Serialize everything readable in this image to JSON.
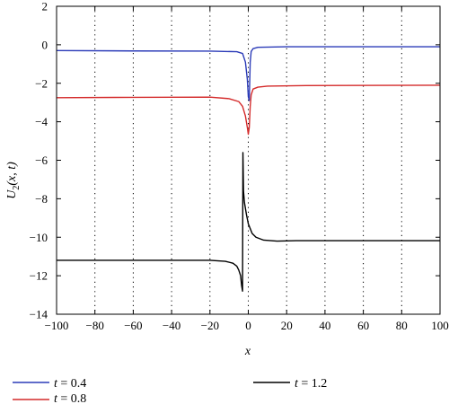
{
  "chart_data": {
    "type": "line",
    "xlabel": "x",
    "ylabel_main": "U",
    "ylabel_sub": "2",
    "ylabel_tail": "(x, t)",
    "xlim": [
      -100,
      100
    ],
    "ylim": [
      -14,
      2
    ],
    "x_ticks": [
      "−100",
      "−80",
      "−60",
      "−40",
      "−20",
      "0",
      "20",
      "40",
      "60",
      "80",
      "100"
    ],
    "y_ticks": [
      "2",
      "0",
      "−2",
      "−4",
      "−6",
      "−8",
      "−10",
      "−12",
      "−14"
    ],
    "grid": "vertical dotted at x ticks",
    "legend_placement": "below plot",
    "series": [
      {
        "name": "t = 0.4",
        "var": "t",
        "val": "0.4",
        "color": "#2b3bb8",
        "points": [
          [
            -100,
            -0.3
          ],
          [
            -60,
            -0.32
          ],
          [
            -20,
            -0.33
          ],
          [
            -6,
            -0.36
          ],
          [
            -3,
            -0.45
          ],
          [
            -1.5,
            -0.9
          ],
          [
            -0.5,
            -1.8
          ],
          [
            0,
            -2.7
          ],
          [
            0.5,
            -2.9
          ],
          [
            1,
            -0.9
          ],
          [
            1.5,
            -0.35
          ],
          [
            2.5,
            -0.2
          ],
          [
            5,
            -0.13
          ],
          [
            20,
            -0.1
          ],
          [
            60,
            -0.1
          ],
          [
            100,
            -0.1
          ]
        ]
      },
      {
        "name": "t = 0.8",
        "var": "t",
        "val": "0.8",
        "color": "#d42a2a",
        "points": [
          [
            -100,
            -2.75
          ],
          [
            -60,
            -2.73
          ],
          [
            -20,
            -2.72
          ],
          [
            -10,
            -2.8
          ],
          [
            -5,
            -2.95
          ],
          [
            -3,
            -3.2
          ],
          [
            -1.5,
            -3.7
          ],
          [
            -0.5,
            -4.3
          ],
          [
            0,
            -4.65
          ],
          [
            0.5,
            -4.3
          ],
          [
            1,
            -3.2
          ],
          [
            1.5,
            -2.6
          ],
          [
            2.5,
            -2.3
          ],
          [
            5,
            -2.2
          ],
          [
            10,
            -2.15
          ],
          [
            30,
            -2.12
          ],
          [
            100,
            -2.1
          ]
        ]
      },
      {
        "name": "t = 1.2",
        "var": "t",
        "val": "1.2",
        "color": "#000000",
        "points": [
          [
            -100,
            -11.2
          ],
          [
            -60,
            -11.2
          ],
          [
            -20,
            -11.2
          ],
          [
            -12,
            -11.25
          ],
          [
            -8,
            -11.35
          ],
          [
            -6,
            -11.5
          ],
          [
            -5,
            -11.7
          ],
          [
            -4,
            -12.0
          ],
          [
            -3.5,
            -12.5
          ],
          [
            -3,
            -12.8
          ],
          [
            -2.8,
            -5.6
          ],
          [
            -2.5,
            -7.6
          ],
          [
            -2,
            -8.2
          ],
          [
            -1,
            -8.8
          ],
          [
            0,
            -9.3
          ],
          [
            2,
            -9.8
          ],
          [
            4,
            -10.0
          ],
          [
            8,
            -10.15
          ],
          [
            15,
            -10.2
          ],
          [
            25,
            -10.18
          ],
          [
            60,
            -10.18
          ],
          [
            100,
            -10.18
          ]
        ]
      }
    ]
  }
}
